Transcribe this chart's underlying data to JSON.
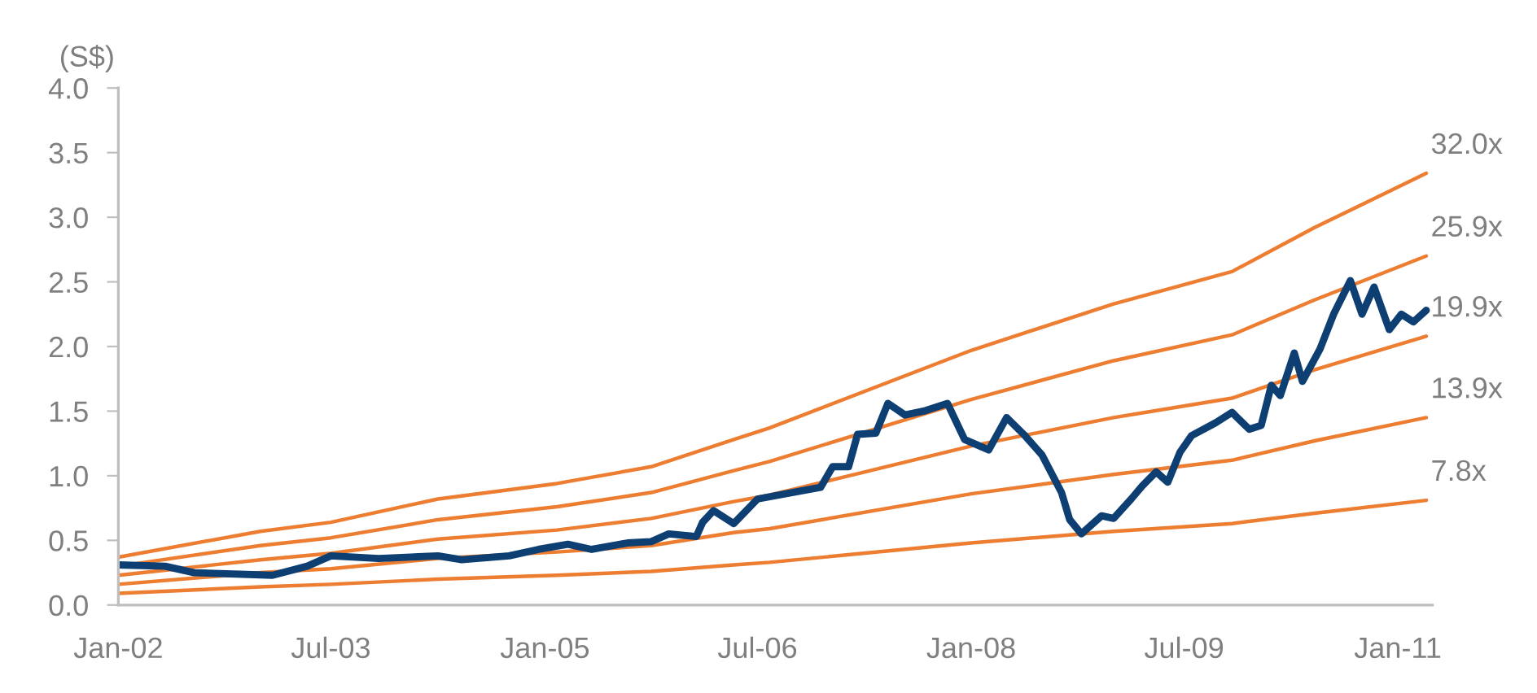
{
  "chart_data": {
    "type": "line",
    "ylabel": "(S$)",
    "xlim": [
      "2002-01-01",
      "2011-03-31"
    ],
    "xticks": [
      {
        "value": "2002-01-01",
        "label": "Jan-02"
      },
      {
        "value": "2003-07-01",
        "label": "Jul-03"
      },
      {
        "value": "2005-01-01",
        "label": "Jan-05"
      },
      {
        "value": "2006-07-01",
        "label": "Jul-06"
      },
      {
        "value": "2008-01-01",
        "label": "Jan-08"
      },
      {
        "value": "2009-07-01",
        "label": "Jul-09"
      },
      {
        "value": "2011-01-01",
        "label": "Jan-11"
      }
    ],
    "ylim": [
      0,
      4
    ],
    "yticks": [
      {
        "value": 0,
        "label": "0.0"
      },
      0.5,
      {
        "value": 1,
        "label": "1.0"
      },
      1.5,
      {
        "value": 2,
        "label": "2.0"
      },
      2.5,
      {
        "value": 3,
        "label": "3.0"
      },
      3.5,
      {
        "value": 4,
        "label": "4.0"
      }
    ],
    "series": [
      {
        "name": "32.0x",
        "color": "#ed7d31",
        "x": [
          "2002-01-01",
          "2003-01-01",
          "2003-07-01",
          "2004-04-01",
          "2005-02-01",
          "2005-10-01",
          "2006-05-01",
          "2006-08-01",
          "2008-01-01",
          "2009-01-01",
          "2009-11-01",
          "2010-06-01",
          "2011-03-15"
        ],
        "values": [
          0.37,
          0.57,
          0.64,
          0.82,
          0.94,
          1.07,
          1.28,
          1.37,
          1.97,
          2.33,
          2.58,
          2.92,
          3.34
        ]
      },
      {
        "name": "25.9x",
        "color": "#ed7d31",
        "x": [
          "2002-01-01",
          "2003-01-01",
          "2003-07-01",
          "2004-04-01",
          "2005-02-01",
          "2005-10-01",
          "2006-05-01",
          "2006-08-01",
          "2008-01-01",
          "2009-01-01",
          "2009-11-01",
          "2010-06-01",
          "2011-03-15"
        ],
        "values": [
          0.3,
          0.46,
          0.52,
          0.66,
          0.76,
          0.87,
          1.04,
          1.11,
          1.59,
          1.89,
          2.09,
          2.36,
          2.7
        ]
      },
      {
        "name": "19.9x",
        "color": "#ed7d31",
        "x": [
          "2002-01-01",
          "2003-01-01",
          "2003-07-01",
          "2004-04-01",
          "2005-02-01",
          "2005-10-01",
          "2006-05-01",
          "2006-08-01",
          "2008-01-01",
          "2009-01-01",
          "2009-11-01",
          "2010-06-01",
          "2011-03-15"
        ],
        "values": [
          0.23,
          0.35,
          0.4,
          0.51,
          0.58,
          0.67,
          0.8,
          0.85,
          1.23,
          1.45,
          1.6,
          1.82,
          2.08
        ]
      },
      {
        "name": "13.9x",
        "color": "#ed7d31",
        "x": [
          "2002-01-01",
          "2003-01-01",
          "2003-07-01",
          "2004-04-01",
          "2005-02-01",
          "2005-10-01",
          "2006-05-01",
          "2006-08-01",
          "2008-01-01",
          "2009-01-01",
          "2009-11-01",
          "2010-06-01",
          "2011-03-15"
        ],
        "values": [
          0.16,
          0.25,
          0.28,
          0.36,
          0.41,
          0.46,
          0.56,
          0.59,
          0.86,
          1.01,
          1.12,
          1.27,
          1.45
        ]
      },
      {
        "name": "7.8x",
        "color": "#ed7d31",
        "x": [
          "2002-01-01",
          "2003-01-01",
          "2003-07-01",
          "2004-04-01",
          "2005-02-01",
          "2005-10-01",
          "2006-05-01",
          "2006-08-01",
          "2008-01-01",
          "2009-01-01",
          "2009-11-01",
          "2010-06-01",
          "2011-03-15"
        ],
        "values": [
          0.09,
          0.14,
          0.16,
          0.2,
          0.23,
          0.26,
          0.31,
          0.33,
          0.48,
          0.57,
          0.63,
          0.71,
          0.81
        ]
      },
      {
        "color": "#0d3f73",
        "x": [
          "2002-01-01",
          "2002-05-01",
          "2002-07-15",
          "2003-02-01",
          "2003-05-01",
          "2003-07-01",
          "2003-11-01",
          "2004-04-01",
          "2004-06-01",
          "2004-10-01",
          "2004-12-15",
          "2005-03-01",
          "2005-05-01",
          "2005-08-01",
          "2005-10-01",
          "2005-11-15",
          "2006-01-25",
          "2006-02-10",
          "2006-03-10",
          "2006-05-01",
          "2006-07-01",
          "2006-12-10",
          "2007-01-10",
          "2007-02-20",
          "2007-03-15",
          "2007-05-01",
          "2007-06-01",
          "2007-07-15",
          "2007-09-01",
          "2007-11-01",
          "2007-12-15",
          "2008-02-15",
          "2008-04-01",
          "2008-05-15",
          "2008-07-01",
          "2008-08-20",
          "2008-09-10",
          "2008-10-10",
          "2008-12-01",
          "2009-01-01",
          "2009-02-15",
          "2009-03-15",
          "2009-04-20",
          "2009-05-20",
          "2009-06-20",
          "2009-07-20",
          "2009-09-20",
          "2009-11-01",
          "2009-12-15",
          "2010-01-15",
          "2010-02-10",
          "2010-03-05",
          "2010-04-10",
          "2010-05-01",
          "2010-06-15",
          "2010-07-20",
          "2010-09-01",
          "2010-10-01",
          "2010-11-01",
          "2010-12-10",
          "2011-01-10",
          "2011-02-10",
          "2011-03-15"
        ],
        "values": [
          0.31,
          0.3,
          0.25,
          0.23,
          0.3,
          0.38,
          0.36,
          0.38,
          0.35,
          0.38,
          0.43,
          0.47,
          0.43,
          0.48,
          0.49,
          0.55,
          0.53,
          0.64,
          0.73,
          0.63,
          0.82,
          0.91,
          1.07,
          1.07,
          1.32,
          1.33,
          1.56,
          1.47,
          1.5,
          1.56,
          1.28,
          1.2,
          1.45,
          1.32,
          1.16,
          0.87,
          0.66,
          0.55,
          0.69,
          0.67,
          0.82,
          0.92,
          1.03,
          0.95,
          1.18,
          1.31,
          1.41,
          1.49,
          1.36,
          1.39,
          1.7,
          1.62,
          1.95,
          1.73,
          1.98,
          2.25,
          2.51,
          2.25,
          2.46,
          2.13,
          2.25,
          2.19,
          2.28
        ]
      }
    ]
  }
}
